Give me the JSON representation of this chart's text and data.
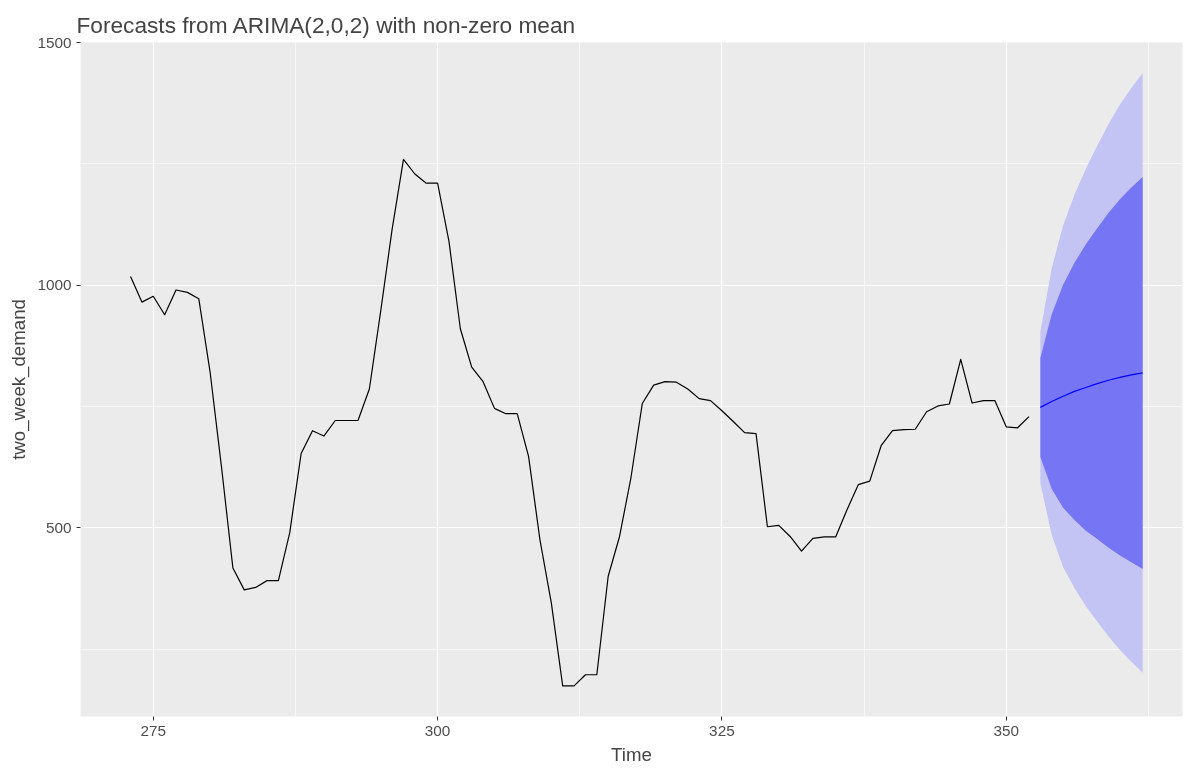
{
  "chart_data": {
    "type": "line",
    "title": "Forecasts from ARIMA(2,0,2) with non-zero mean",
    "xlabel": "Time",
    "ylabel": "two_week_demand",
    "xlim": [
      268.6,
      365.5
    ],
    "ylim": [
      111,
      1500
    ],
    "xticks": [
      275,
      300,
      325,
      350
    ],
    "yticks": [
      500,
      1000,
      1500
    ],
    "grid": true,
    "series": [
      {
        "color": "#000000",
        "x": [
          273,
          274,
          275,
          276,
          277,
          278,
          279,
          280,
          281,
          282,
          283,
          284,
          285,
          286,
          287,
          288,
          289,
          290,
          291,
          292,
          293,
          294,
          295,
          296,
          297,
          298,
          299,
          300,
          301,
          302,
          303,
          304,
          305,
          306,
          307,
          308,
          309,
          310,
          311,
          312,
          313,
          314,
          315,
          316,
          317,
          318,
          319,
          320,
          321,
          322,
          323,
          324,
          325,
          326,
          327,
          328,
          329,
          330,
          331,
          332,
          333,
          334,
          335,
          336,
          337,
          338,
          339,
          340,
          341,
          342,
          343,
          344,
          345,
          346,
          347,
          348,
          349,
          350,
          351,
          352
        ],
        "values": [
          1018,
          965,
          977,
          939,
          990,
          985,
          972,
          820,
          625,
          417,
          372,
          377,
          391,
          391,
          490,
          653,
          700,
          689,
          721,
          721,
          721,
          786,
          947,
          1115,
          1259,
          1229,
          1210,
          1210,
          1090,
          910,
          831,
          801,
          746,
          735,
          735,
          647,
          475,
          345,
          174,
          174,
          197,
          197,
          400,
          482,
          603,
          756,
          794,
          801,
          800,
          786,
          766,
          762,
          741,
          719,
          696,
          694,
          502,
          505,
          482,
          452,
          478,
          481,
          481,
          537,
          589,
          596,
          669,
          700,
          702,
          703,
          739,
          751,
          755,
          847,
          757,
          762,
          762,
          708,
          706,
          729
        ]
      },
      {
        "color": "#c4c4f4",
        "x": [
          353,
          354,
          355,
          356,
          357,
          358,
          359,
          360,
          361,
          362
        ],
        "values": [
          null,
          null,
          null,
          null,
          null,
          null,
          null,
          null,
          null,
          null
        ],
        "lower": [
          592,
          485,
          419,
          376,
          338,
          307,
          276,
          248,
          224,
          201
        ],
        "upper": [
          904,
          1035,
          1123,
          1186,
          1240,
          1287,
          1332,
          1372,
          1406,
          1437
        ]
      },
      {
        "color": "#0000ff",
        "x": [
          353,
          354,
          355,
          356,
          357,
          358,
          359,
          360,
          361,
          362
        ],
        "values": [
          748,
          760,
          771,
          781,
          789,
          797,
          804,
          810,
          815,
          819
        ],
        "lower": [
          646,
          580,
          541,
          516,
          494,
          477,
          459,
          443,
          429,
          415
        ],
        "upper": [
          850,
          940,
          1001,
          1046,
          1084,
          1117,
          1149,
          1177,
          1201,
          1223
        ]
      }
    ]
  }
}
